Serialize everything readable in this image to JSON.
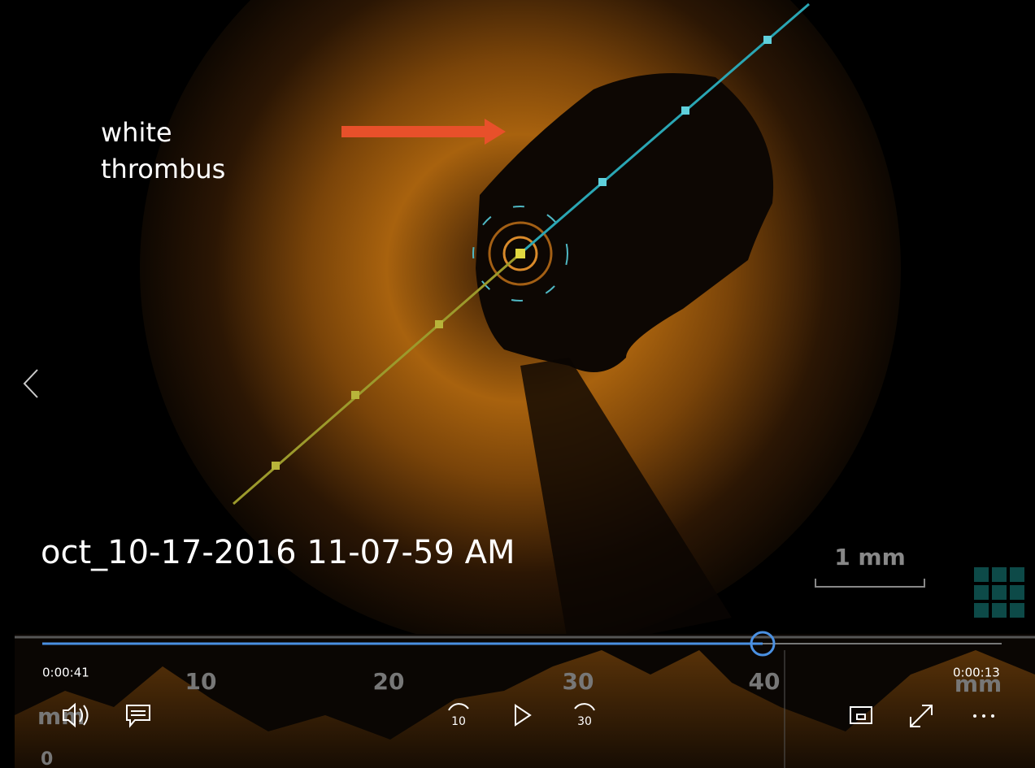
{
  "annotation": {
    "lines": [
      "white",
      "thrombus"
    ]
  },
  "file_label": "oct_10-17-2016 11-07-59 AM",
  "scale_bar": "1 mm",
  "player": {
    "elapsed": "0:00:41",
    "remaining": "0:00:13",
    "skip_back": "10",
    "skip_forward": "30"
  },
  "ruler": {
    "labels": [
      "10",
      "20",
      "30",
      "40",
      "mm"
    ],
    "side_unit": "mm",
    "zero": "0"
  }
}
